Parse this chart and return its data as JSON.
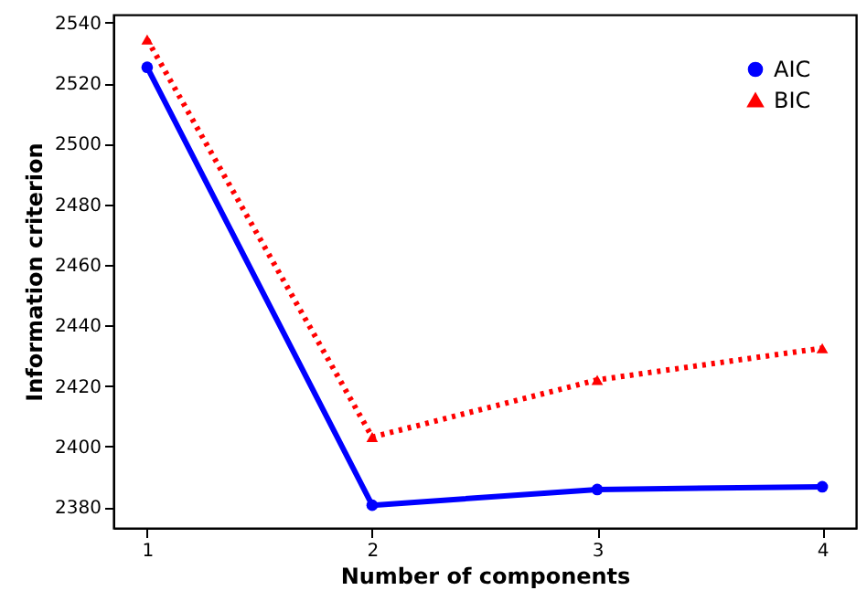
{
  "chart_data": {
    "type": "line",
    "xlabel": "Number of components",
    "ylabel": "Information criterion",
    "x": [
      1,
      2,
      3,
      4
    ],
    "series": [
      {
        "name": "AIC",
        "color": "#0000ff",
        "values": [
          2525.3,
          2380.6,
          2385.8,
          2386.7
        ],
        "marker": "circle",
        "line_style": "solid"
      },
      {
        "name": "BIC",
        "color": "#ff0000",
        "values": [
          2534.5,
          2403.1,
          2422,
          2432.5
        ],
        "marker": "triangle",
        "line_style": "dotted"
      }
    ],
    "xlim": [
      0.85,
      4.15
    ],
    "xticks": [
      1,
      2,
      3,
      4
    ],
    "ylim": [
      2373.1,
      2542.7
    ],
    "yticks": [
      2380,
      2400,
      2420,
      2440,
      2460,
      2480,
      2500,
      2520,
      2540
    ],
    "grid": false,
    "legend": "top right"
  }
}
